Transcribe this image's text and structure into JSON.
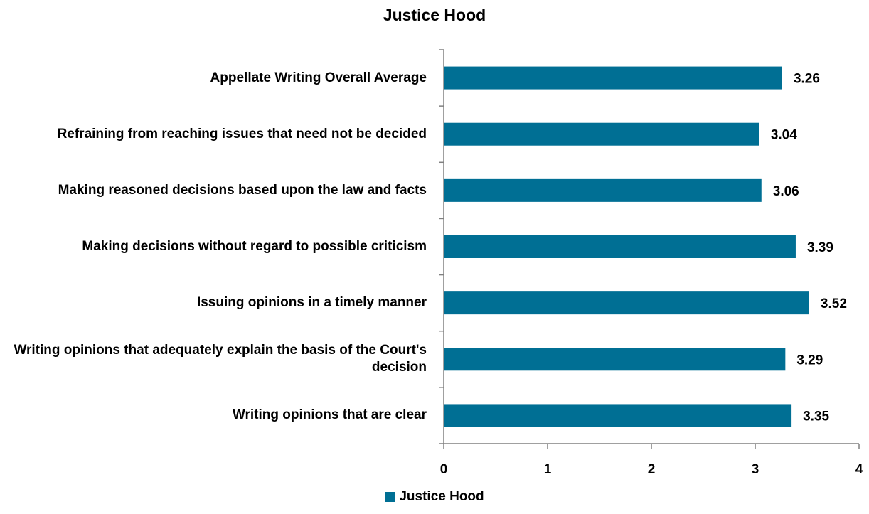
{
  "chart_data": {
    "type": "bar",
    "orientation": "horizontal",
    "title": "Justice Hood",
    "categories": [
      "Appellate Writing Overall Average",
      "Refraining from reaching issues that need not be decided",
      "Making reasoned decisions based upon the law and facts",
      "Making decisions without regard to possible criticism",
      "Issuing opinions in a timely manner",
      "Writing opinions that adequately explain the basis of the Court's decision",
      "Writing opinions that are clear"
    ],
    "series": [
      {
        "name": "Justice Hood",
        "values": [
          3.26,
          3.04,
          3.06,
          3.39,
          3.52,
          3.29,
          3.35
        ],
        "color": "#006f94"
      }
    ],
    "data_labels": [
      "3.26",
      "3.04",
      "3.06",
      "3.39",
      "3.52",
      "3.29",
      "3.35"
    ],
    "xlim": [
      0,
      4
    ],
    "x_ticks": [
      "0",
      "1",
      "2",
      "3",
      "4"
    ],
    "xlabel": "",
    "ylabel": "",
    "grid": false,
    "legend_position": "bottom"
  }
}
